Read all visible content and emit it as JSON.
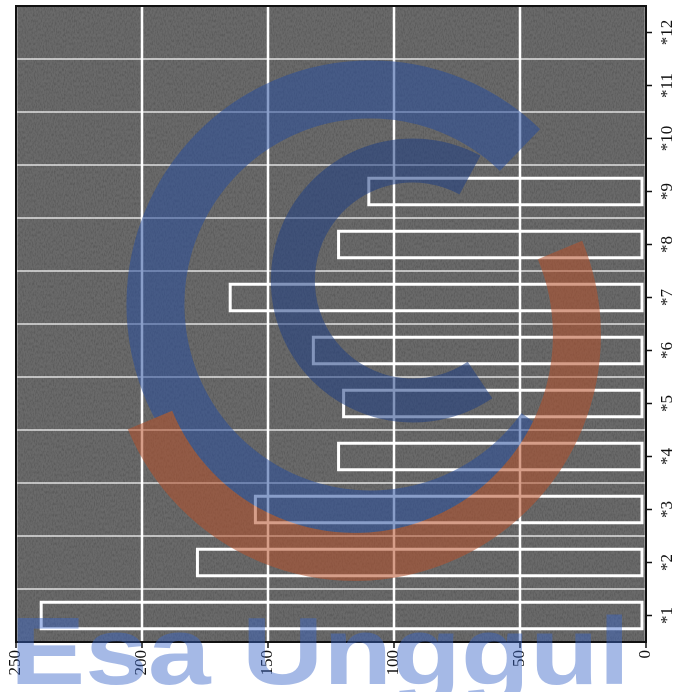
{
  "chart_data": {
    "type": "bar",
    "orientation": "horizontal",
    "style": "speckled noisy grayscale scan, watermark overlay",
    "categories": [
      "*1",
      "*2",
      "*3",
      "*4",
      "*5",
      "*6",
      "*7",
      "*8",
      "*9",
      "*10",
      "*11",
      "*12"
    ],
    "values": [
      240,
      178,
      155,
      122,
      120,
      132,
      165,
      122,
      110,
      0,
      0,
      0
    ],
    "xlim": [
      250,
      0
    ],
    "x_ticks": [
      "250",
      "200",
      "150",
      "100",
      "50",
      "0"
    ],
    "x_tick_values": [
      250,
      200,
      150,
      100,
      50,
      0
    ],
    "grid": true,
    "title": "",
    "xlabel": "",
    "ylabel": "",
    "colors": {
      "background_noise": "#555555",
      "bar_outline": "#ffffff",
      "watermark_blue": "#2a4f9e",
      "watermark_red": "#b5502a",
      "watermark_text": "#3a66c8"
    }
  },
  "watermark": {
    "text": "Esa Unggul",
    "logo": "circular swirl logo"
  }
}
